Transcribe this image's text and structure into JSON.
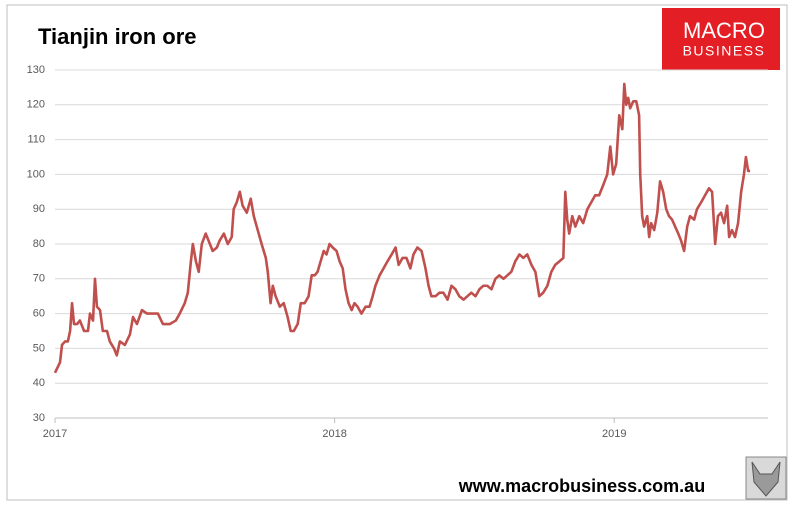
{
  "chart_data": {
    "type": "line",
    "title": "Tianjin iron ore",
    "x": [
      2017.0,
      2017.018,
      2017.025,
      2017.036,
      2017.046,
      2017.054,
      2017.061,
      2017.068,
      2017.079,
      2017.089,
      2017.104,
      2017.118,
      2017.125,
      2017.136,
      2017.143,
      2017.15,
      2017.161,
      2017.171,
      2017.186,
      2017.196,
      2017.211,
      2017.221,
      2017.232,
      2017.25,
      2017.268,
      2017.279,
      2017.293,
      2017.311,
      2017.329,
      2017.346,
      2017.368,
      2017.386,
      2017.411,
      2017.432,
      2017.446,
      2017.464,
      2017.475,
      2017.486,
      2017.493,
      2017.504,
      2017.514,
      2017.525,
      2017.539,
      2017.554,
      2017.564,
      2017.579,
      2017.589,
      2017.604,
      2017.618,
      2017.632,
      2017.639,
      2017.65,
      2017.661,
      2017.671,
      2017.686,
      2017.7,
      2017.711,
      2017.725,
      2017.739,
      2017.754,
      2017.761,
      2017.771,
      2017.779,
      2017.789,
      2017.804,
      2017.818,
      2017.832,
      2017.843,
      2017.854,
      2017.868,
      2017.879,
      2017.893,
      2017.907,
      2017.918,
      2017.929,
      2017.939,
      2017.95,
      2017.961,
      2017.971,
      2017.982,
      2017.993,
      2018.007,
      2018.018,
      2018.029,
      2018.039,
      2018.05,
      2018.061,
      2018.071,
      2018.082,
      2018.096,
      2018.111,
      2018.125,
      2018.136,
      2018.146,
      2018.161,
      2018.175,
      2018.189,
      2018.204,
      2018.218,
      2018.229,
      2018.243,
      2018.257,
      2018.271,
      2018.282,
      2018.296,
      2018.311,
      2018.325,
      2018.336,
      2018.346,
      2018.361,
      2018.375,
      2018.389,
      2018.404,
      2018.418,
      2018.432,
      2018.446,
      2018.461,
      2018.475,
      2018.489,
      2018.504,
      2018.518,
      2018.532,
      2018.546,
      2018.561,
      2018.575,
      2018.589,
      2018.604,
      2018.618,
      2018.632,
      2018.646,
      2018.661,
      2018.675,
      2018.689,
      2018.704,
      2018.718,
      2018.732,
      2018.746,
      2018.761,
      2018.775,
      2018.789,
      2018.804,
      2018.818,
      2018.825,
      2018.832,
      2018.839,
      2018.85,
      2018.861,
      2018.875,
      2018.889,
      2018.904,
      2018.918,
      2018.932,
      2018.946,
      2018.961,
      2018.975,
      2018.986,
      2018.996,
      2019.007,
      2019.018,
      2019.029,
      2019.036,
      2019.043,
      2019.05,
      2019.057,
      2019.068,
      2019.079,
      2019.089,
      2019.093,
      2019.1,
      2019.107,
      2019.118,
      2019.125,
      2019.132,
      2019.143,
      2019.154,
      2019.164,
      2019.175,
      2019.186,
      2019.196,
      2019.207,
      2019.218,
      2019.229,
      2019.239,
      2019.25,
      2019.261,
      2019.271,
      2019.286,
      2019.296,
      2019.311,
      2019.325,
      2019.339,
      2019.35,
      2019.361,
      2019.371,
      2019.382,
      2019.393,
      2019.404,
      2019.411,
      2019.421,
      2019.432,
      2019.443,
      2019.454,
      2019.464,
      2019.471,
      2019.479,
      2019.486
    ],
    "series": [
      {
        "name": "Tianjin iron ore",
        "color": "#c0504d",
        "values": [
          43,
          46,
          51,
          52,
          52,
          55,
          63,
          57,
          57,
          58,
          55,
          55,
          60,
          58,
          70,
          62,
          61,
          55,
          55,
          52,
          50,
          48,
          52,
          51,
          54,
          59,
          57,
          61,
          60,
          60,
          60,
          57,
          57,
          58,
          60,
          63,
          66,
          75,
          80,
          75,
          72,
          80,
          83,
          80,
          78,
          79,
          81,
          83,
          80,
          82,
          90,
          92,
          95,
          91,
          89,
          93,
          88,
          84,
          80,
          76,
          72,
          63,
          68,
          65,
          62,
          63,
          59,
          55,
          55,
          57,
          63,
          63,
          65,
          71,
          71,
          72,
          75,
          78,
          77,
          80,
          79,
          78,
          75,
          73,
          67,
          63,
          61,
          63,
          62,
          60,
          62,
          62,
          65,
          68,
          71,
          73,
          75,
          77,
          79,
          74,
          76,
          76,
          73,
          77,
          79,
          78,
          73,
          68,
          65,
          65,
          66,
          66,
          64,
          68,
          67,
          65,
          64,
          65,
          66,
          65,
          67,
          68,
          68,
          67,
          70,
          71,
          70,
          71,
          72,
          75,
          77,
          76,
          77,
          74,
          72,
          65,
          66,
          68,
          72,
          74,
          75,
          76,
          95,
          87,
          83,
          88,
          85,
          88,
          86,
          90,
          92,
          94,
          94,
          97,
          100,
          108,
          100,
          103,
          117,
          113,
          126,
          120,
          122,
          119,
          121,
          121,
          117,
          100,
          88,
          85,
          88,
          82,
          86,
          84,
          89,
          98,
          95,
          90,
          88,
          87,
          85,
          83,
          81,
          78,
          85,
          88,
          87,
          90,
          92,
          94,
          96,
          95,
          80,
          88,
          89,
          86,
          91,
          82,
          84,
          82,
          86,
          95,
          100,
          105,
          101,
          101
        ]
      }
    ],
    "xlim": [
      2017,
      2019.55
    ],
    "xticks": [
      2017,
      2018,
      2019
    ],
    "ylim": [
      30,
      130
    ],
    "yticks": [
      30,
      40,
      50,
      60,
      70,
      80,
      90,
      100,
      110,
      120,
      130
    ],
    "grid": true
  },
  "logo": {
    "line1": "MACRO",
    "line2": "BUSINESS"
  },
  "footer": "www.macrobusiness.com.au"
}
